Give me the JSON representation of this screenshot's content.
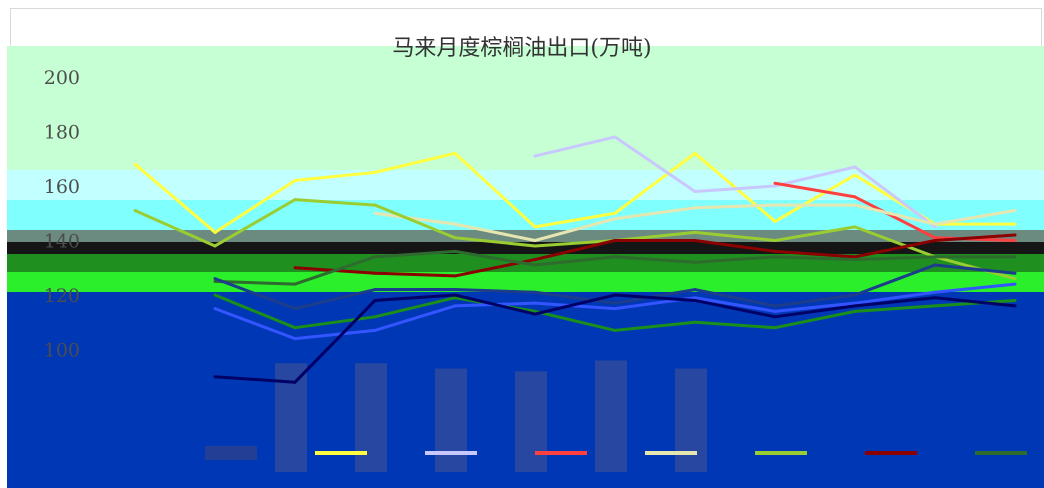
{
  "chart_data": {
    "type": "line",
    "title": "马来月度棕榈油出口(万吨)",
    "xlabel": "",
    "ylabel": "",
    "ylim": [
      40,
      210
    ],
    "yticks": [
      200,
      180,
      160,
      140,
      120,
      100
    ],
    "categories": [
      "",
      "",
      "",
      "",
      "",
      "",
      "",
      "",
      "",
      "",
      "",
      ""
    ],
    "series": [
      {
        "name": "",
        "color": "#2e4a9e",
        "kind": "bar",
        "values": [
          null,
          95,
          95,
          93,
          92,
          96,
          93,
          null,
          null,
          null,
          null,
          null
        ]
      },
      {
        "name": "",
        "color": "#ffff40",
        "values": [
          168,
          143,
          162,
          165,
          172,
          145,
          150,
          172,
          147,
          164,
          146,
          146
        ]
      },
      {
        "name": "",
        "color": "#c8c8ff",
        "values": [
          null,
          null,
          null,
          null,
          null,
          171,
          178,
          158,
          160,
          167,
          145,
          null
        ]
      },
      {
        "name": "",
        "color": "#ff4040",
        "values": [
          null,
          null,
          null,
          null,
          null,
          null,
          null,
          null,
          161,
          156,
          141,
          140
        ]
      },
      {
        "name": "",
        "color": "#e6e6b0",
        "values": [
          null,
          null,
          null,
          150,
          146,
          140,
          148,
          152,
          153,
          153,
          146,
          151
        ]
      },
      {
        "name": "",
        "color": "#9acd32",
        "values": [
          151,
          138,
          155,
          153,
          141,
          138,
          140,
          143,
          140,
          145,
          134,
          126
        ]
      },
      {
        "name": "",
        "color": "#8b0000",
        "values": [
          null,
          null,
          130,
          128,
          127,
          133,
          140,
          140,
          136,
          134,
          140,
          142
        ]
      },
      {
        "name": "",
        "color": "#2e6b2e",
        "values": [
          null,
          125,
          124,
          134,
          136,
          131,
          134,
          132,
          134,
          133,
          134,
          134
        ]
      },
      {
        "name": "",
        "color": "#1c3c8c",
        "values": [
          null,
          126,
          115,
          122,
          122,
          121,
          117,
          122,
          116,
          120,
          131,
          128
        ]
      },
      {
        "name": "",
        "color": "#1a8f1a",
        "values": [
          null,
          120,
          108,
          112,
          119,
          114,
          107,
          110,
          108,
          114,
          116,
          118
        ]
      },
      {
        "name": "",
        "color": "#3355ff",
        "values": [
          null,
          115,
          104,
          107,
          116,
          117,
          115,
          119,
          114,
          117,
          121,
          124
        ]
      },
      {
        "name": "",
        "color": "#000066",
        "values": [
          null,
          90,
          88,
          118,
          120,
          113,
          120,
          118,
          112,
          116,
          119,
          116
        ]
      }
    ]
  },
  "page": {
    "title": "马来月度棕榈油出口(万吨)"
  },
  "colors": {
    "background": "#ffffff",
    "band_mint": "#c6ffd4",
    "band_cyan_light": "#c2ffff",
    "band_cyan": "#80ffff",
    "band_gray": "#6b8a80",
    "band_dark": "#151515",
    "band_green": "#2aef2a",
    "band_blue": "#0037b5"
  }
}
